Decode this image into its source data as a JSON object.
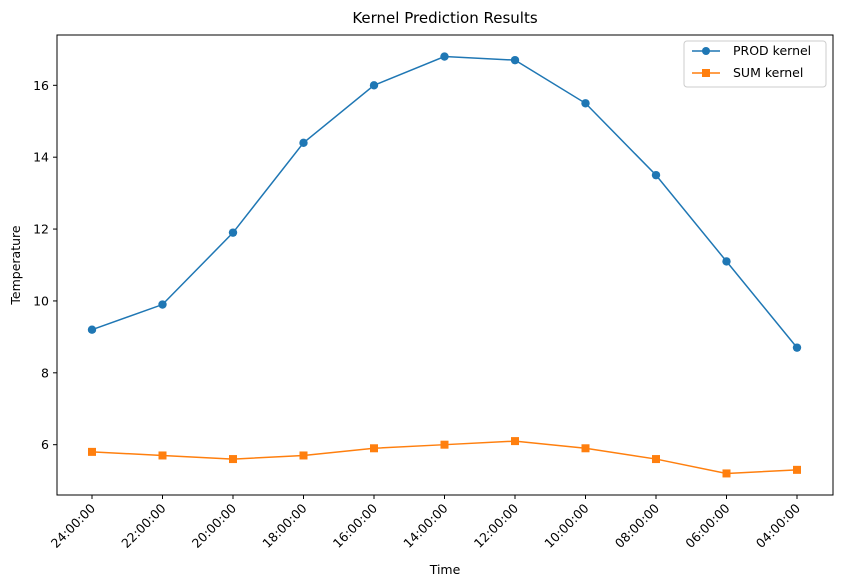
{
  "chart_data": {
    "type": "line",
    "title": "Kernel Prediction Results",
    "xlabel": "Time",
    "ylabel": "Temperature",
    "categories": [
      "24:00:00",
      "22:00:00",
      "20:00:00",
      "18:00:00",
      "16:00:00",
      "14:00:00",
      "12:00:00",
      "10:00:00",
      "08:00:00",
      "06:00:00",
      "04:00:00"
    ],
    "yticks": [
      6,
      8,
      10,
      12,
      14,
      16
    ],
    "ylim": [
      4.6,
      17.4
    ],
    "grid": false,
    "legend_position": "top-right",
    "series": [
      {
        "name": "PROD kernel",
        "color": "#1f77b4",
        "marker": "circle",
        "values": [
          9.2,
          9.9,
          11.9,
          14.4,
          16.0,
          16.8,
          16.7,
          15.5,
          13.5,
          11.1,
          8.7
        ]
      },
      {
        "name": "SUM kernel",
        "color": "#ff7f0e",
        "marker": "square",
        "values": [
          5.8,
          5.7,
          5.6,
          5.7,
          5.9,
          6.0,
          6.1,
          5.9,
          5.6,
          5.2,
          5.3
        ]
      }
    ]
  }
}
